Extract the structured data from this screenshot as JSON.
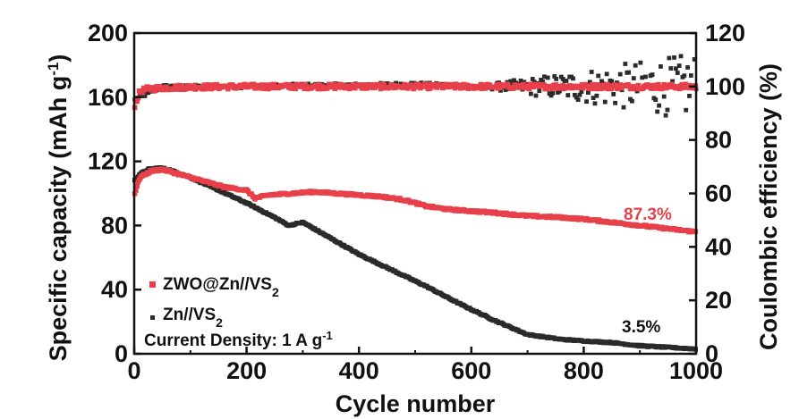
{
  "chart_data": {
    "type": "scatter",
    "title": "",
    "xlabel": "Cycle number",
    "ylabel": "Specific capacity (mAh g⁻¹)",
    "ylabel_parts": {
      "main": "Specific capacity (mAh g",
      "sup": "-1",
      "end": ")"
    },
    "y2label": "Coulombic efficiency (%)",
    "xlim": [
      0,
      1000
    ],
    "ylim": [
      0,
      200
    ],
    "y2lim": [
      0,
      120
    ],
    "x_ticks": [
      0,
      200,
      400,
      600,
      800,
      1000
    ],
    "y_ticks": [
      0,
      40,
      80,
      120,
      160,
      200
    ],
    "y2_ticks": [
      0,
      20,
      40,
      60,
      80,
      100,
      120
    ],
    "grid": false,
    "legend_position": "lower-left",
    "colors": {
      "zwo": "#e8404a",
      "zn": "#2b2b2b",
      "axis": "#111111"
    },
    "legend": [
      {
        "series": "zwo",
        "parts": {
          "main": "ZWO@Zn//VS",
          "sub": "2"
        }
      },
      {
        "series": "zn",
        "parts": {
          "main": "Zn//VS",
          "sub": "2"
        }
      }
    ],
    "note": {
      "main": "Current Density: 1 A g",
      "sup": "-1"
    },
    "annotations": [
      {
        "text": "87.3%",
        "series": "zwo"
      },
      {
        "text": "3.5%",
        "series": "zn"
      }
    ],
    "series": [
      {
        "name": "ZWO@Zn//VS2",
        "key": "zwo",
        "axis": "capacity",
        "x": [
          1,
          10,
          30,
          50,
          80,
          120,
          160,
          200,
          215,
          240,
          280,
          320,
          360,
          400,
          440,
          480,
          520,
          560,
          600,
          640,
          700,
          760,
          800,
          850,
          900,
          950,
          1000
        ],
        "y": [
          100,
          110,
          114,
          115,
          112,
          108,
          104,
          102,
          97,
          99,
          100,
          101,
          100,
          99,
          98,
          96,
          92,
          90,
          89,
          88,
          86,
          85,
          84,
          82,
          80,
          78,
          76
        ]
      },
      {
        "name": "Zn//VS2",
        "key": "zn",
        "axis": "capacity",
        "x": [
          1,
          10,
          25,
          45,
          60,
          100,
          150,
          200,
          250,
          275,
          300,
          340,
          400,
          460,
          520,
          580,
          640,
          700,
          760,
          800,
          850,
          900,
          950,
          1000
        ],
        "y": [
          108,
          112,
          115,
          116,
          115,
          110,
          102,
          94,
          85,
          80,
          82,
          74,
          62,
          52,
          42,
          31,
          21,
          12,
          9,
          8,
          7,
          5,
          4,
          3
        ]
      },
      {
        "name": "ZWO@Zn//VS2 efficiency",
        "key": "zwo",
        "axis": "efficiency",
        "x": [
          1,
          10,
          20,
          50,
          100,
          200,
          300,
          400,
          500,
          600,
          700,
          800,
          900,
          1000
        ],
        "y": [
          93,
          98,
          99,
          99.5,
          99.8,
          100,
          100,
          100,
          100,
          100,
          100,
          100,
          100,
          100
        ]
      },
      {
        "name": "Zn//VS2 efficiency",
        "key": "zn",
        "axis": "efficiency",
        "x": [
          1,
          50,
          100,
          200,
          300,
          400,
          500,
          600,
          650,
          700,
          800,
          900,
          1000
        ],
        "y": [
          95,
          100,
          100,
          100,
          100.5,
          100.5,
          101,
          100,
          100,
          100,
          100,
          100,
          100
        ],
        "scatter_spread_start": 620
      }
    ]
  }
}
